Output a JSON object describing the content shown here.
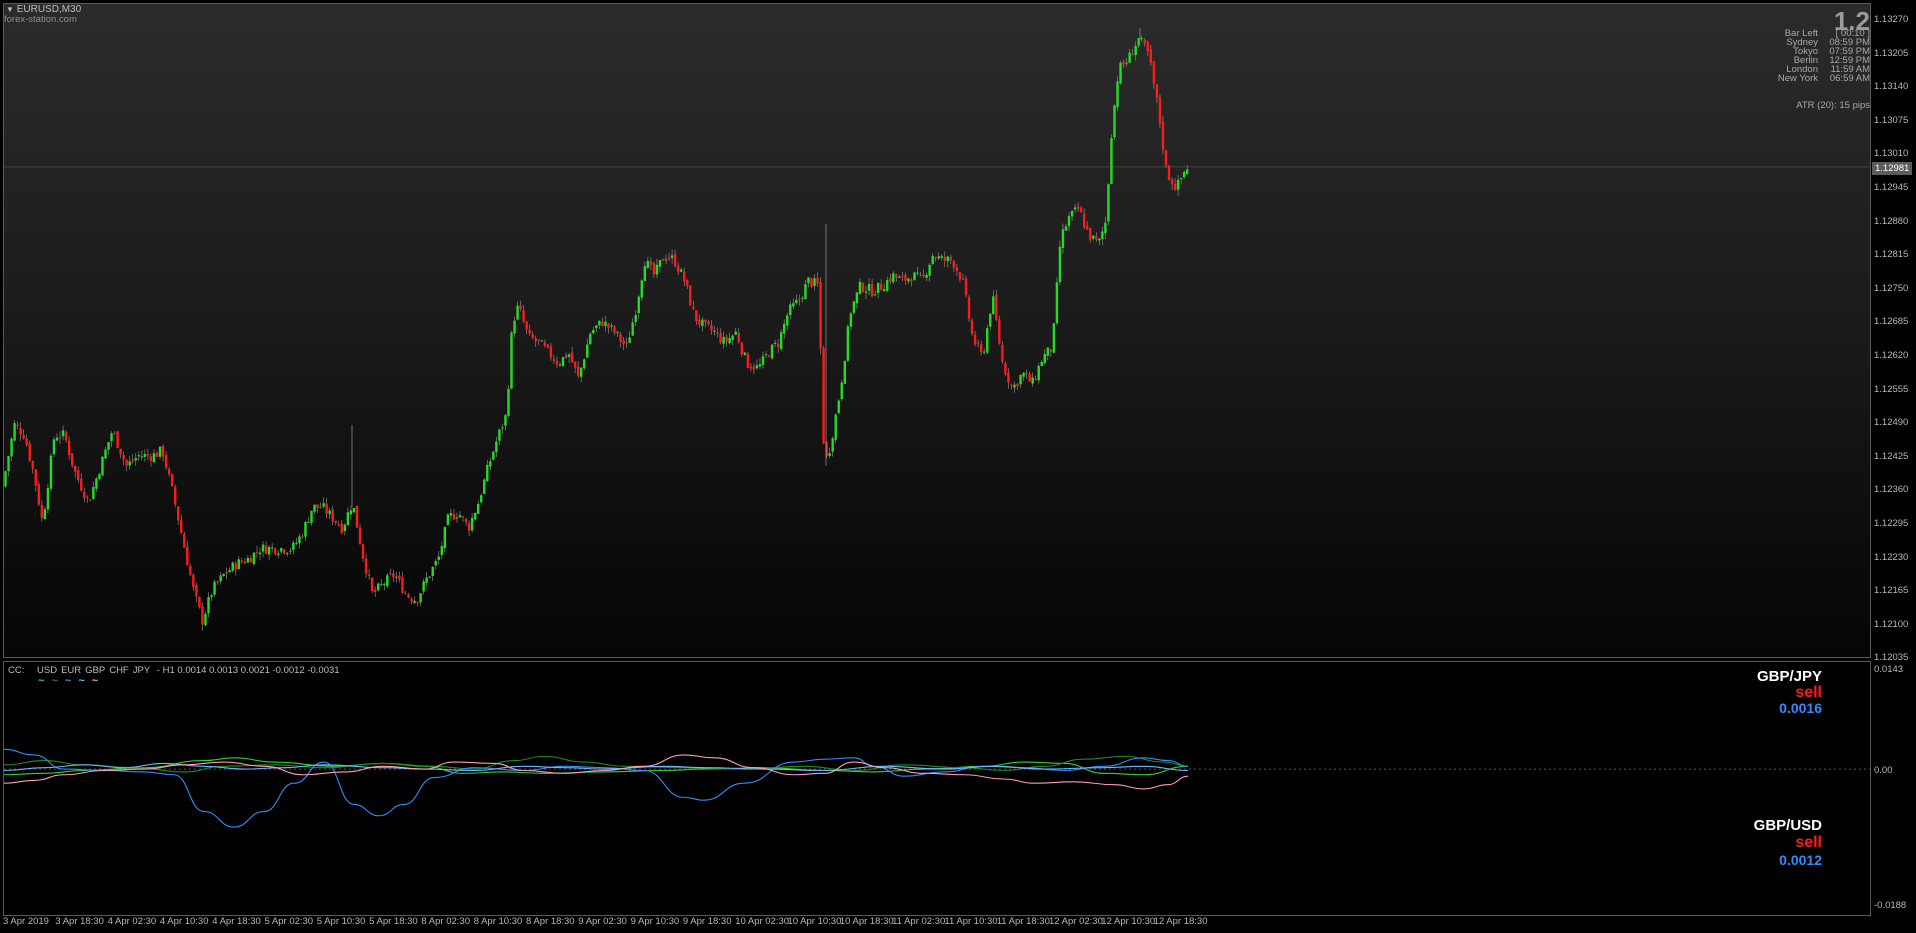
{
  "chart_header": {
    "symbol": "EURUSD,M30",
    "watermark": "forex-station.com"
  },
  "info_panel": {
    "big_value": "1.2",
    "rows": [
      {
        "label": "Bar Left",
        "value": "[ 00:10 ]"
      },
      {
        "label": "Sydney",
        "value": "08:59 PM"
      },
      {
        "label": "Tokyo",
        "value": "07:59 PM"
      },
      {
        "label": "Berlin",
        "value": "12:59 PM"
      },
      {
        "label": "London",
        "value": "11:59 AM"
      },
      {
        "label": "New York",
        "value": "06:59 AM"
      }
    ],
    "atr": "ATR (20): 15 pips"
  },
  "price_axis": [
    "1.13270",
    "1.13205",
    "1.13140",
    "1.13075",
    "1.13010",
    "1.12945",
    "1.12880",
    "1.12815",
    "1.12750",
    "1.12685",
    "1.12620",
    "1.12555",
    "1.12490",
    "1.12425",
    "1.12360",
    "1.12295",
    "1.12230",
    "1.12165",
    "1.12100",
    "1.12035"
  ],
  "current_price": "1.12981",
  "indicator": {
    "title": "CC:",
    "currencies": [
      {
        "name": "USD",
        "color": "#32d232"
      },
      {
        "name": "EUR",
        "color": "#1f8a1f"
      },
      {
        "name": "GBP",
        "color": "#2f8dff"
      },
      {
        "name": "CHF",
        "color": "#6fb7ff"
      },
      {
        "name": "JPY",
        "color": "#ff9eb5"
      }
    ],
    "params": "- H1 0.0014 0.0013 0.0021 -0.0012 -0.0031",
    "axis": [
      "0.0143",
      "0.00",
      "-0.0188"
    ],
    "signals": [
      {
        "pair": "GBP/JPY",
        "signal": "sell",
        "value": "0.0016"
      },
      {
        "pair": "GBP/USD",
        "signal": "sell",
        "value": "0.0012"
      }
    ]
  },
  "time_axis": [
    "3 Apr 2019",
    "3 Apr 18:30",
    "4 Apr 02:30",
    "4 Apr 10:30",
    "4 Apr 18:30",
    "5 Apr 02:30",
    "5 Apr 10:30",
    "5 Apr 18:30",
    "8 Apr 02:30",
    "8 Apr 10:30",
    "8 Apr 18:30",
    "9 Apr 02:30",
    "9 Apr 10:30",
    "9 Apr 18:30",
    "10 Apr 02:30",
    "10 Apr 10:30",
    "10 Apr 18:30",
    "11 Apr 02:30",
    "11 Apr 10:30",
    "11 Apr 18:30",
    "12 Apr 02:30",
    "12 Apr 10:30",
    "12 Apr 18:30"
  ],
  "chart_data": [
    {
      "type": "candlestick",
      "title": "EURUSD,M30",
      "ylim": [
        1.12035,
        1.1327
      ],
      "up_color": "#22dd22",
      "down_color": "#ff1a1a",
      "close_path": [
        [
          0,
          1.1236
        ],
        [
          12,
          1.1248
        ],
        [
          22,
          1.1246
        ],
        [
          32,
          1.1238
        ],
        [
          40,
          1.1229
        ],
        [
          52,
          1.1246
        ],
        [
          62,
          1.1246
        ],
        [
          72,
          1.1239
        ],
        [
          86,
          1.1233
        ],
        [
          98,
          1.124
        ],
        [
          110,
          1.1247
        ],
        [
          124,
          1.124
        ],
        [
          136,
          1.1242
        ],
        [
          150,
          1.1242
        ],
        [
          160,
          1.1243
        ],
        [
          170,
          1.1235
        ],
        [
          180,
          1.1226
        ],
        [
          192,
          1.1215
        ],
        [
          200,
          1.121
        ],
        [
          210,
          1.1216
        ],
        [
          222,
          1.1219
        ],
        [
          234,
          1.1221
        ],
        [
          246,
          1.1222
        ],
        [
          258,
          1.1224
        ],
        [
          270,
          1.1224
        ],
        [
          282,
          1.1224
        ],
        [
          290,
          1.1224
        ],
        [
          300,
          1.1227
        ],
        [
          310,
          1.1232
        ],
        [
          320,
          1.1232
        ],
        [
          330,
          1.123
        ],
        [
          340,
          1.1228
        ],
        [
          350,
          1.1233
        ],
        [
          360,
          1.1223
        ],
        [
          370,
          1.1215
        ],
        [
          380,
          1.1217
        ],
        [
          392,
          1.1219
        ],
        [
          404,
          1.1215
        ],
        [
          414,
          1.1214
        ],
        [
          424,
          1.1218
        ],
        [
          436,
          1.1222
        ],
        [
          446,
          1.123
        ],
        [
          456,
          1.1231
        ],
        [
          466,
          1.1228
        ],
        [
          476,
          1.1233
        ],
        [
          486,
          1.124
        ],
        [
          496,
          1.1246
        ],
        [
          504,
          1.125
        ],
        [
          510,
          1.1268
        ],
        [
          516,
          1.1271
        ],
        [
          526,
          1.1265
        ],
        [
          536,
          1.1264
        ],
        [
          546,
          1.1262
        ],
        [
          556,
          1.126
        ],
        [
          566,
          1.1262
        ],
        [
          576,
          1.1257
        ],
        [
          588,
          1.1266
        ],
        [
          600,
          1.1268
        ],
        [
          612,
          1.1266
        ],
        [
          624,
          1.1263
        ],
        [
          634,
          1.1271
        ],
        [
          642,
          1.128
        ],
        [
          652,
          1.1277
        ],
        [
          662,
          1.1281
        ],
        [
          672,
          1.128
        ],
        [
          682,
          1.1276
        ],
        [
          692,
          1.1269
        ],
        [
          702,
          1.1267
        ],
        [
          712,
          1.1266
        ],
        [
          722,
          1.1264
        ],
        [
          734,
          1.1266
        ],
        [
          744,
          1.126
        ],
        [
          756,
          1.1259
        ],
        [
          766,
          1.1262
        ],
        [
          776,
          1.1264
        ],
        [
          786,
          1.127
        ],
        [
          796,
          1.1272
        ],
        [
          806,
          1.1276
        ],
        [
          816,
          1.1275
        ],
        [
          822,
          1.124
        ],
        [
          828,
          1.1244
        ],
        [
          838,
          1.1255
        ],
        [
          848,
          1.127
        ],
        [
          858,
          1.1275
        ],
        [
          870,
          1.1274
        ],
        [
          880,
          1.1275
        ],
        [
          890,
          1.1277
        ],
        [
          900,
          1.1276
        ],
        [
          910,
          1.1277
        ],
        [
          920,
          1.1276
        ],
        [
          930,
          1.1281
        ],
        [
          940,
          1.128
        ],
        [
          950,
          1.128
        ],
        [
          960,
          1.1276
        ],
        [
          970,
          1.1265
        ],
        [
          980,
          1.1261
        ],
        [
          990,
          1.1273
        ],
        [
          1000,
          1.126
        ],
        [
          1010,
          1.1255
        ],
        [
          1020,
          1.1258
        ],
        [
          1030,
          1.1256
        ],
        [
          1040,
          1.1261
        ],
        [
          1050,
          1.1263
        ],
        [
          1058,
          1.1284
        ],
        [
          1066,
          1.1288
        ],
        [
          1076,
          1.129
        ],
        [
          1086,
          1.1285
        ],
        [
          1096,
          1.1283
        ],
        [
          1104,
          1.1288
        ],
        [
          1108,
          1.1303
        ],
        [
          1116,
          1.1317
        ],
        [
          1126,
          1.1319
        ],
        [
          1136,
          1.1323
        ],
        [
          1146,
          1.132
        ],
        [
          1156,
          1.1309
        ],
        [
          1164,
          1.1297
        ],
        [
          1174,
          1.1294
        ],
        [
          1184,
          1.1298
        ]
      ],
      "spikes": [
        [
          348,
          1.1248
        ],
        [
          822,
          1.1287
        ],
        [
          1136,
          1.1325
        ]
      ]
    },
    {
      "type": "line",
      "title": "CC: USD EUR GBP CHF JPY - H1",
      "ylim": [
        -0.0188,
        0.0143
      ],
      "series": [
        {
          "name": "USD",
          "color": "#32d232",
          "values": [
            [
              0,
              -0.0008
            ],
            [
              40,
              -0.0006
            ],
            [
              80,
              -0.0002
            ],
            [
              140,
              0.0002
            ],
            [
              200,
              0.0012
            ],
            [
              230,
              0.0016
            ],
            [
              270,
              0.001
            ],
            [
              330,
              0.0004
            ],
            [
              380,
              0.0008
            ],
            [
              420,
              0.0004
            ],
            [
              460,
              -0.0006
            ],
            [
              500,
              -0.0004
            ],
            [
              540,
              -0.0006
            ],
            [
              600,
              -0.0004
            ],
            [
              660,
              -0.0002
            ],
            [
              700,
              0.0
            ],
            [
              760,
              0.0002
            ],
            [
              820,
              -0.0002
            ],
            [
              870,
              -0.0004
            ],
            [
              920,
              0.0
            ],
            [
              980,
              0.0004
            ],
            [
              1020,
              0.001
            ],
            [
              1060,
              0.0008
            ],
            [
              1100,
              -0.0006
            ],
            [
              1140,
              -0.0008
            ],
            [
              1184,
              0.0004
            ]
          ]
        },
        {
          "name": "EUR",
          "color": "#1f8a1f",
          "values": [
            [
              0,
              0.0006
            ],
            [
              40,
              0.0012
            ],
            [
              80,
              0.0006
            ],
            [
              130,
              0.0002
            ],
            [
              180,
              -0.0004
            ],
            [
              220,
              0.0004
            ],
            [
              270,
              0.0006
            ],
            [
              320,
              0.0002
            ],
            [
              380,
              0.0008
            ],
            [
              430,
              0.0004
            ],
            [
              470,
              0.0
            ],
            [
              510,
              0.0012
            ],
            [
              540,
              0.0018
            ],
            [
              580,
              0.001
            ],
            [
              620,
              0.0004
            ],
            [
              680,
              0.0002
            ],
            [
              740,
              0.0
            ],
            [
              800,
              0.0004
            ],
            [
              850,
              -0.0002
            ],
            [
              900,
              0.0006
            ],
            [
              960,
              0.0002
            ],
            [
              1000,
              -0.0002
            ],
            [
              1040,
              0.0004
            ],
            [
              1080,
              0.0014
            ],
            [
              1120,
              0.0018
            ],
            [
              1160,
              0.001
            ],
            [
              1184,
              0.0004
            ]
          ]
        },
        {
          "name": "GBP",
          "color": "#2f8dff",
          "values": [
            [
              0,
              0.0028
            ],
            [
              30,
              0.002
            ],
            [
              60,
              0.0
            ],
            [
              100,
              -0.0002
            ],
            [
              140,
              -0.0004
            ],
            [
              170,
              -0.0008
            ],
            [
              200,
              -0.006
            ],
            [
              230,
              -0.0082
            ],
            [
              260,
              -0.006
            ],
            [
              290,
              -0.002
            ],
            [
              320,
              0.001
            ],
            [
              350,
              -0.005
            ],
            [
              375,
              -0.0066
            ],
            [
              400,
              -0.005
            ],
            [
              430,
              -0.0012
            ],
            [
              470,
              0.0002
            ],
            [
              520,
              -0.0002
            ],
            [
              560,
              0.0004
            ],
            [
              600,
              0.0002
            ],
            [
              640,
              -0.0002
            ],
            [
              680,
              -0.004
            ],
            [
              700,
              -0.0044
            ],
            [
              740,
              -0.002
            ],
            [
              790,
              0.001
            ],
            [
              820,
              0.0014
            ],
            [
              850,
              0.0016
            ],
            [
              870,
              0.0004
            ],
            [
              900,
              -0.001
            ],
            [
              940,
              -0.0004
            ],
            [
              980,
              0.0004
            ],
            [
              1020,
              0.0002
            ],
            [
              1060,
              -0.0002
            ],
            [
              1100,
              0.0004
            ],
            [
              1140,
              0.0016
            ],
            [
              1164,
              0.0012
            ],
            [
              1184,
              0.0004
            ]
          ]
        },
        {
          "name": "CHF",
          "color": "#6fb7ff",
          "values": [
            [
              0,
              -0.0002
            ],
            [
              40,
              0.0002
            ],
            [
              80,
              0.0006
            ],
            [
              120,
              0.0002
            ],
            [
              160,
              0.0008
            ],
            [
              200,
              0.0004
            ],
            [
              240,
              0.0
            ],
            [
              280,
              0.0002
            ],
            [
              320,
              0.0006
            ],
            [
              380,
              0.0002
            ],
            [
              420,
              0.0
            ],
            [
              470,
              -0.0002
            ],
            [
              520,
              0.0004
            ],
            [
              560,
              0.0002
            ],
            [
              600,
              0.0
            ],
            [
              660,
              0.0004
            ],
            [
              700,
              0.0002
            ],
            [
              760,
              0.0
            ],
            [
              820,
              -0.0002
            ],
            [
              880,
              0.0004
            ],
            [
              940,
              0.0
            ],
            [
              990,
              0.0004
            ],
            [
              1040,
              0.0
            ],
            [
              1100,
              0.0002
            ],
            [
              1140,
              0.0004
            ],
            [
              1184,
              -0.0002
            ]
          ]
        },
        {
          "name": "JPY",
          "color": "#ff9eb5",
          "values": [
            [
              0,
              -0.002
            ],
            [
              30,
              -0.0016
            ],
            [
              60,
              -0.0008
            ],
            [
              100,
              -0.0002
            ],
            [
              140,
              0.0
            ],
            [
              180,
              0.0006
            ],
            [
              220,
              0.001
            ],
            [
              260,
              0.0004
            ],
            [
              300,
              -0.0008
            ],
            [
              340,
              -0.0004
            ],
            [
              380,
              0.0004
            ],
            [
              420,
              0.0
            ],
            [
              450,
              0.001
            ],
            [
              490,
              0.0008
            ],
            [
              520,
              -0.0002
            ],
            [
              560,
              -0.0006
            ],
            [
              600,
              -0.0002
            ],
            [
              640,
              0.0004
            ],
            [
              680,
              0.002
            ],
            [
              710,
              0.0016
            ],
            [
              750,
              0.0002
            ],
            [
              790,
              -0.0008
            ],
            [
              820,
              -0.0006
            ],
            [
              850,
              0.001
            ],
            [
              880,
              0.0002
            ],
            [
              920,
              -0.0006
            ],
            [
              960,
              -0.0008
            ],
            [
              1000,
              -0.0014
            ],
            [
              1030,
              -0.002
            ],
            [
              1070,
              -0.0018
            ],
            [
              1110,
              -0.0022
            ],
            [
              1140,
              -0.0028
            ],
            [
              1164,
              -0.0022
            ],
            [
              1184,
              -0.001
            ]
          ]
        }
      ]
    }
  ]
}
